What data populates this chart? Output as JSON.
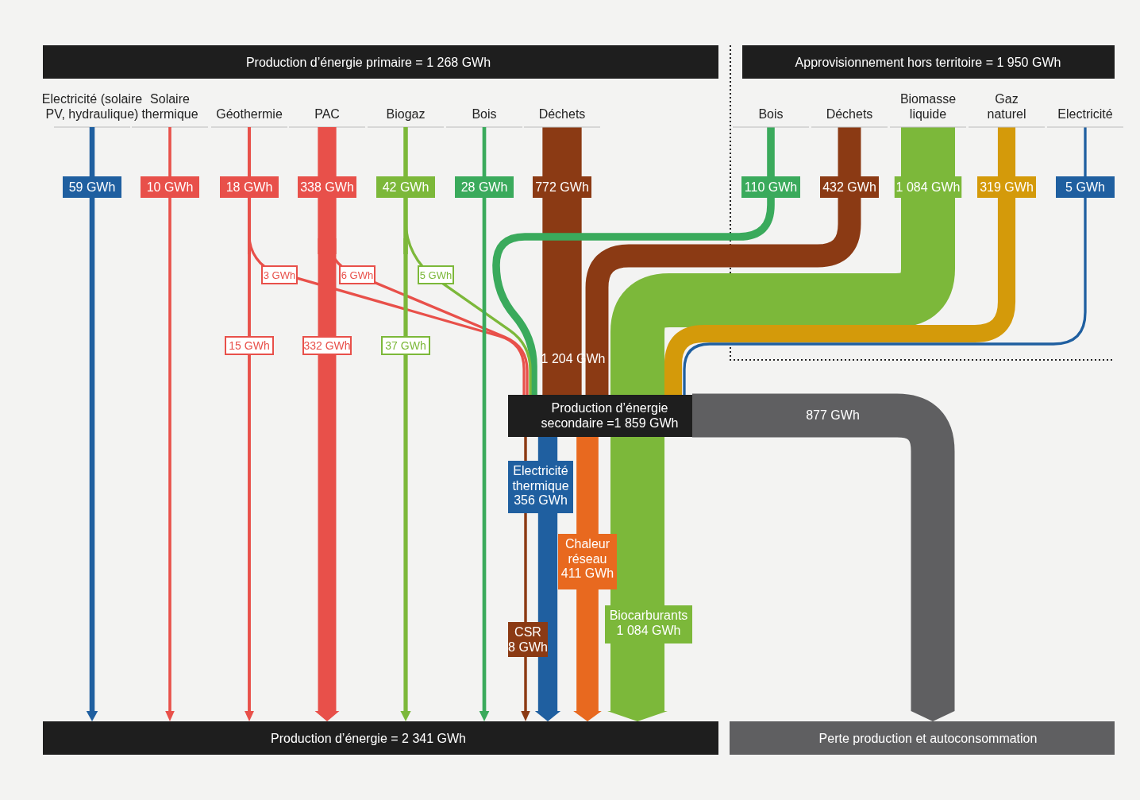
{
  "chart_data": [
    {
      "type": "other",
      "title": "Production d’énergie primaire = 1 268 GWh",
      "subtitle": "Approvisionnement hors territoire = 1 950 GWh",
      "categories": [
        "Electricité (solaire\nPV, hydraulique)",
        "Solaire\nthermique",
        "Géothermie",
        "PAC",
        "Biogaz",
        "Bois",
        "Déchets",
        "Bois",
        "Déchets",
        "Biomasse\nliquide",
        "Gaz\nnaturel",
        "Electricité"
      ],
      "series": [
        {
          "colors": [
            "#1f5fa0",
            "#e8504a",
            "#e8504a",
            "#e8504a",
            "#7cb83a",
            "#3aaa5c",
            "#8b3a14",
            "#3aaa5c",
            "#8b3a14",
            "#7cb83a",
            "#d49a0a",
            "#1f5fa0"
          ],
          "values": [
            59,
            10,
            18,
            338,
            42,
            28,
            772,
            110,
            432,
            1084,
            319,
            5
          ],
          "value_labels": [
            "59 GWh",
            "10 GWh",
            "18 GWh",
            "338 GWh",
            "42 GWh",
            "28 GWh",
            "772 GWh",
            "110 GWh",
            "432 GWh",
            "1 084 GWh",
            "319 GWh",
            "5 GWh"
          ]
        },
        {
          "values": [
            null,
            null,
            3,
            6,
            5,
            null,
            null,
            null,
            null,
            null,
            null,
            null
          ],
          "value_labels": [
            null,
            null,
            "3 GWh",
            "6 GWh",
            "5 GWh",
            null,
            null,
            null,
            null,
            null,
            null,
            null
          ]
        },
        {
          "values": [
            null,
            null,
            15,
            332,
            37,
            null,
            null,
            null,
            null,
            null,
            null,
            null
          ],
          "value_labels": [
            null,
            null,
            "15 GWh",
            "332 GWh",
            "37 GWh",
            null,
            null,
            null,
            null,
            null,
            null,
            null
          ]
        }
      ],
      "annotations": [
        "Production d’énergie = 2 341 GWh"
      ]
    },
    {
      "type": "other",
      "title": "Production d’énergie\nsecondaire =1 859 GWh",
      "categories": [
        "Electricité\nthermique",
        "Chaleur\nréseau",
        "Biocarburants",
        "CSR"
      ],
      "values": [
        356,
        411,
        1084,
        8
      ],
      "value_labels": [
        "356 GWh",
        "411 GWh",
        "1 084 GWh",
        "8 GWh"
      ],
      "colors": [
        "#1f5fa0",
        "#e8691f",
        "#7cb83a",
        "#8b3a14"
      ],
      "annotations": [
        "1 204 GWh",
        "877 GWh",
        "Perte production et autoconsommation"
      ]
    }
  ]
}
